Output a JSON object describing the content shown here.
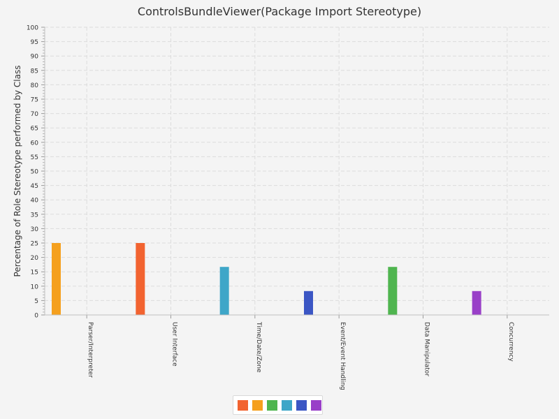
{
  "chart_data": {
    "type": "bar",
    "title": "ControlsBundleViewer(Package Import Stereotype)",
    "ylabel": "Percentage of Role Stereotype performed by Class",
    "xlabel": "",
    "ylim": [
      0,
      100
    ],
    "y_ticks": [
      "0",
      "5",
      "10",
      "15",
      "20",
      "25",
      "30",
      "35",
      "40",
      "45",
      "50",
      "55",
      "60",
      "65",
      "70",
      "75",
      "80",
      "85",
      "90",
      "95",
      "100"
    ],
    "categories": [
      "Parser/Interpreter",
      "User Interface",
      "Time/Date/Zone",
      "Event/Event Handling",
      "Data Manipulator",
      "Concurrency"
    ],
    "values": [
      25,
      25,
      16.7,
      8.3,
      16.7,
      8.3
    ],
    "bar_colors": [
      "#f5a01e",
      "#f26330",
      "#3ea6c8",
      "#3b56c4",
      "#4fb54f",
      "#9940c8"
    ],
    "grid": true,
    "legend_position": "bottom",
    "legend_colors": [
      "#f26330",
      "#f5a01e",
      "#4fb54f",
      "#3ea6c8",
      "#3b56c4",
      "#9940c8"
    ]
  }
}
